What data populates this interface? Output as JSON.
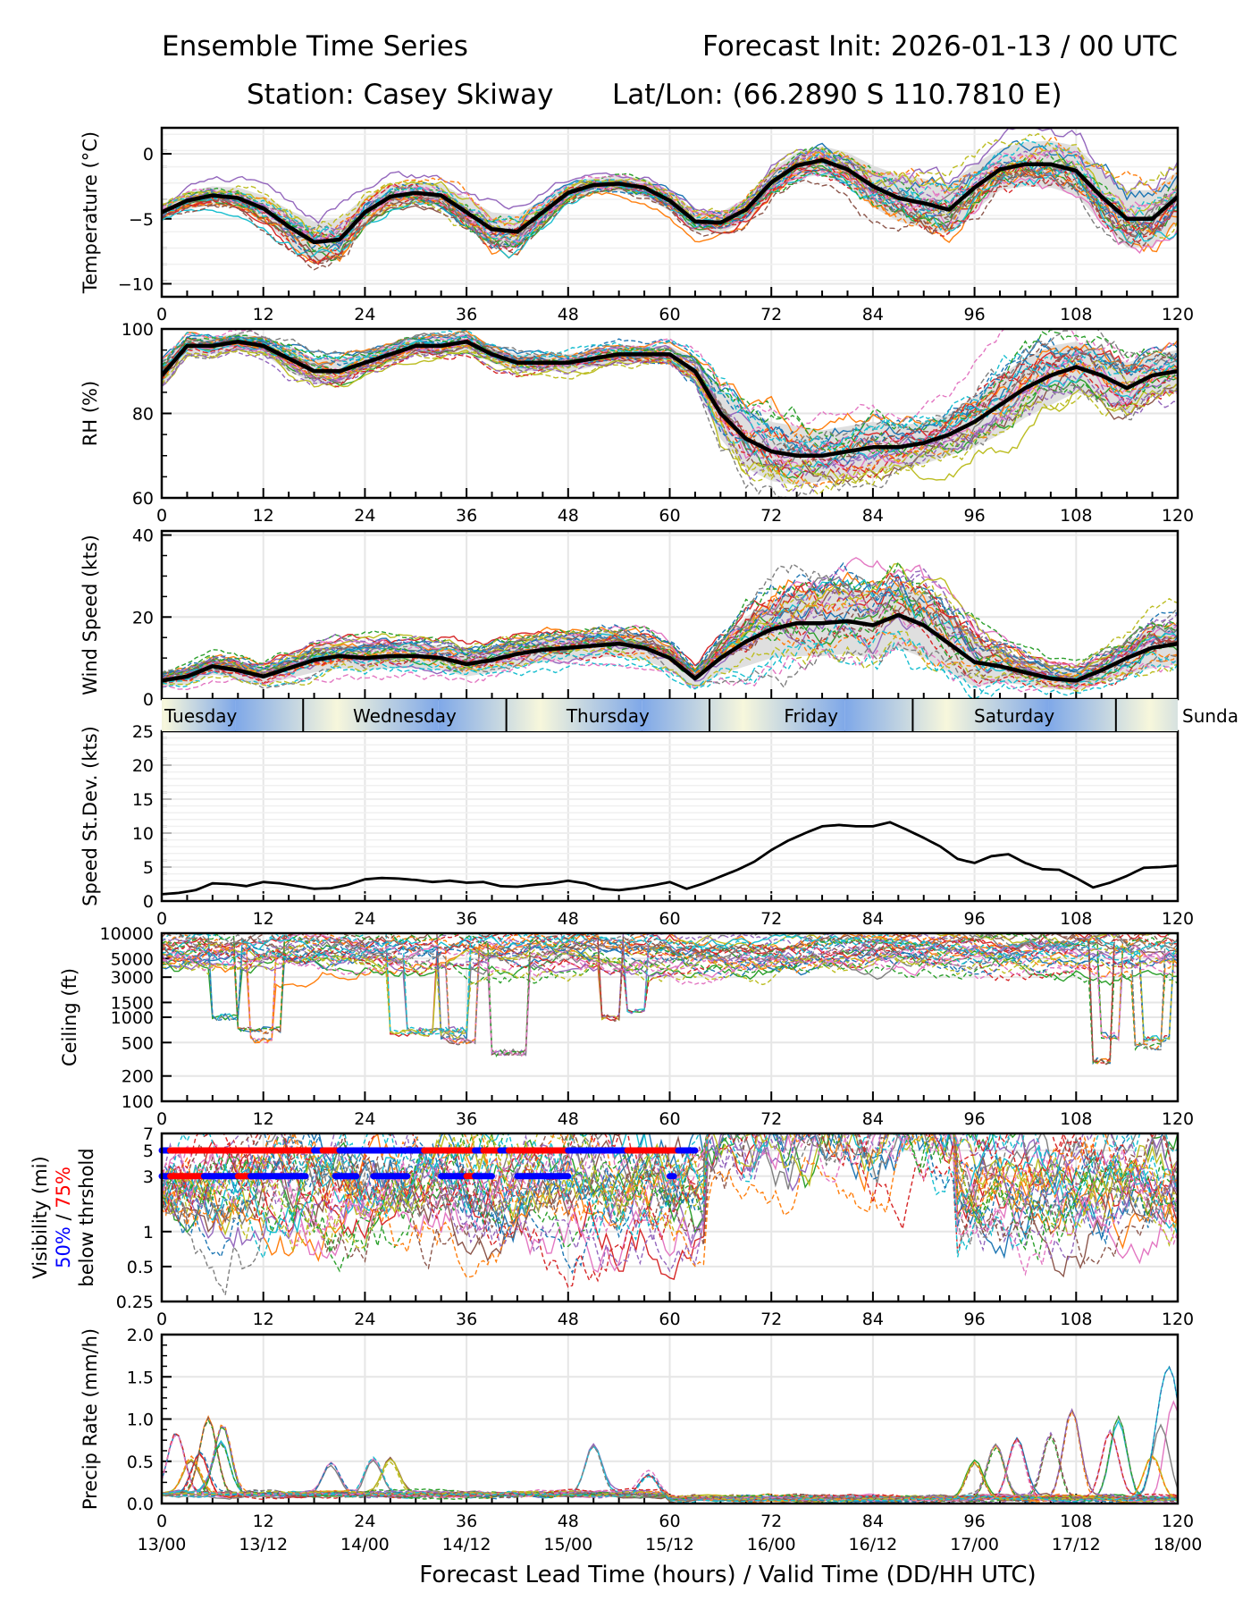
{
  "header": {
    "title": "Ensemble Time Series",
    "init": "Forecast Init: 2026-01-13 / 00 UTC",
    "station": "Station: Casey Skiway",
    "latlon": "Lat/Lon: (66.2890 S 110.7810 E)"
  },
  "xaxis": {
    "label": "Forecast Lead Time (hours) / Valid Time (DD/HH UTC)",
    "ticks": [
      0,
      12,
      24,
      36,
      48,
      60,
      72,
      84,
      96,
      108,
      120
    ],
    "valid_labels": [
      "13/00",
      "13/12",
      "14/00",
      "14/12",
      "15/00",
      "15/12",
      "16/00",
      "16/12",
      "17/00",
      "17/12",
      "18/00"
    ],
    "range": [
      0,
      120
    ]
  },
  "day_band": {
    "days": [
      {
        "label": "Tuesday",
        "start": 0,
        "end": 16.7
      },
      {
        "label": "Wednesday",
        "start": 16.7,
        "end": 40.7
      },
      {
        "label": "Thursday",
        "start": 40.7,
        "end": 64.7
      },
      {
        "label": "Friday",
        "start": 64.7,
        "end": 88.7
      },
      {
        "label": "Saturday",
        "start": 88.7,
        "end": 112.7
      },
      {
        "label": "Sunda",
        "start": 112.7,
        "end": 136.7
      }
    ],
    "colors": {
      "light": "#f7f7dc",
      "dark": "#7fa8e8"
    }
  },
  "colors": {
    "members": [
      "#1f77b4",
      "#ff7f0e",
      "#2ca02c",
      "#d62728",
      "#9467bd",
      "#8c564b",
      "#e377c2",
      "#7f7f7f",
      "#bcbd22",
      "#17becf"
    ],
    "mean": "#000000",
    "spread": "#d9d9d9",
    "grid": "#e6e6e6",
    "p50": "#0000ff",
    "p75": "#ff0000"
  },
  "chart_data": [
    {
      "id": "temperature",
      "type": "line",
      "ylabel": "Temperature (°C)",
      "ylim": [
        -11,
        2
      ],
      "yticks": [
        0,
        -5,
        -10
      ],
      "ytick_labels": [
        "0",
        "−5",
        "−10"
      ],
      "members": 30,
      "mean": {
        "x": [
          0,
          3,
          6,
          9,
          12,
          15,
          18,
          21,
          24,
          27,
          30,
          33,
          36,
          39,
          42,
          45,
          48,
          51,
          54,
          57,
          60,
          63,
          66,
          69,
          72,
          75,
          78,
          81,
          84,
          87,
          90,
          93,
          96,
          99,
          102,
          105,
          108,
          111,
          114,
          117,
          120
        ],
        "y": [
          -4.5,
          -3.6,
          -3.2,
          -3.4,
          -4.2,
          -5.6,
          -6.8,
          -6.6,
          -4.5,
          -3.3,
          -3.0,
          -3.2,
          -4.5,
          -5.8,
          -6.0,
          -4.5,
          -3.0,
          -2.4,
          -2.3,
          -2.6,
          -3.6,
          -5.2,
          -5.3,
          -4.3,
          -2.2,
          -0.9,
          -0.5,
          -1.2,
          -2.5,
          -3.4,
          -3.8,
          -4.3,
          -2.6,
          -1.2,
          -0.8,
          -0.8,
          -1.3,
          -3.3,
          -5.0,
          -5.0,
          -3.3
        ]
      },
      "spread": [
        0.6,
        0.7,
        0.7,
        0.8,
        1.0,
        1.3,
        1.6,
        1.6,
        1.2,
        0.9,
        0.8,
        0.9,
        1.1,
        1.3,
        1.3,
        1.0,
        0.7,
        0.6,
        0.6,
        0.7,
        0.8,
        0.8,
        0.8,
        0.9,
        1.0,
        1.0,
        1.1,
        1.3,
        1.6,
        1.8,
        1.9,
        1.9,
        1.8,
        1.6,
        1.7,
        1.8,
        1.9,
        2.0,
        2.2,
        2.2,
        2.0
      ]
    },
    {
      "id": "rh",
      "type": "line",
      "ylabel": "RH (%)",
      "ylim": [
        60,
        100
      ],
      "yticks": [
        100,
        80,
        60
      ],
      "ytick_labels": [
        "100",
        "80",
        "60"
      ],
      "members": 30,
      "mean": {
        "x": [
          0,
          3,
          6,
          9,
          12,
          15,
          18,
          21,
          24,
          27,
          30,
          33,
          36,
          39,
          42,
          45,
          48,
          51,
          54,
          57,
          60,
          63,
          66,
          69,
          72,
          75,
          78,
          81,
          84,
          87,
          90,
          93,
          96,
          99,
          102,
          105,
          108,
          111,
          114,
          117,
          120
        ],
        "y": [
          89,
          96,
          96,
          97,
          96,
          93,
          90,
          90,
          92,
          94,
          96,
          96,
          97,
          94,
          92,
          92,
          92,
          93,
          94,
          94,
          94,
          90,
          80,
          74,
          71,
          70,
          70,
          71,
          72,
          72,
          73,
          75,
          78,
          82,
          86,
          89,
          91,
          89,
          86,
          89,
          90
        ]
      },
      "spread": [
        3,
        2,
        2,
        2,
        2,
        3,
        3,
        3,
        2,
        2,
        2,
        2,
        2,
        2,
        2,
        2,
        2,
        2,
        2,
        2,
        2,
        3,
        6,
        7,
        7,
        7,
        6,
        6,
        6,
        5,
        5,
        5,
        6,
        7,
        7,
        7,
        6,
        6,
        6,
        5,
        5
      ]
    },
    {
      "id": "wind",
      "type": "line",
      "ylabel": "Wind Speed (kts)",
      "ylim": [
        0,
        41
      ],
      "yticks": [
        0,
        20,
        40
      ],
      "ytick_labels": [
        "0",
        "20",
        "40"
      ],
      "members": 30,
      "mean": {
        "x": [
          0,
          3,
          6,
          9,
          12,
          15,
          18,
          21,
          24,
          27,
          30,
          33,
          36,
          39,
          42,
          45,
          48,
          51,
          54,
          57,
          60,
          63,
          66,
          69,
          72,
          75,
          78,
          81,
          84,
          87,
          90,
          93,
          96,
          99,
          102,
          105,
          108,
          111,
          114,
          117,
          120
        ],
        "y": [
          4.5,
          5.5,
          8,
          7,
          5.5,
          7.5,
          9.5,
          10.5,
          10,
          10.5,
          10.5,
          10,
          8.5,
          9.5,
          11,
          12,
          12.5,
          13,
          13.5,
          12.5,
          10,
          5,
          10,
          14,
          17,
          18.5,
          18.5,
          19,
          18,
          20.5,
          18,
          13.5,
          9,
          8,
          6.5,
          5,
          4.5,
          7,
          10,
          12.5,
          13.5
        ]
      },
      "spread": [
        1.5,
        2,
        2,
        2,
        2,
        2.5,
        3,
        3,
        3,
        3,
        3,
        3,
        3,
        3,
        3,
        3,
        3,
        3,
        3,
        3,
        3,
        2,
        4,
        6,
        7,
        8,
        8,
        8,
        8,
        8,
        8,
        7,
        6,
        4,
        3,
        2.5,
        2.5,
        3,
        4,
        5,
        5
      ]
    },
    {
      "id": "speed_stdev",
      "type": "line",
      "ylabel": "Speed St.Dev. (kts)",
      "ylim": [
        0,
        25
      ],
      "yticks": [
        0,
        5,
        10,
        15,
        20,
        25
      ],
      "ytick_labels": [
        "0",
        "5",
        "10",
        "15",
        "20",
        "25"
      ],
      "members": 0,
      "mean": {
        "x": [
          0,
          2,
          4,
          6,
          8,
          10,
          12,
          14,
          16,
          18,
          20,
          22,
          24,
          26,
          28,
          30,
          32,
          34,
          36,
          38,
          40,
          42,
          44,
          46,
          48,
          50,
          52,
          54,
          56,
          58,
          60,
          62,
          64,
          66,
          68,
          70,
          72,
          74,
          76,
          78,
          80,
          82,
          84,
          86,
          88,
          90,
          92,
          94,
          96,
          98,
          100,
          102,
          104,
          106,
          108,
          110,
          112,
          114,
          116,
          118,
          120
        ],
        "y": [
          1.0,
          1.2,
          1.6,
          2.6,
          2.5,
          2.2,
          2.8,
          2.6,
          2.2,
          1.8,
          1.9,
          2.4,
          3.2,
          3.4,
          3.3,
          3.1,
          2.8,
          3.0,
          2.7,
          2.8,
          2.2,
          2.1,
          2.4,
          2.6,
          3.0,
          2.6,
          1.8,
          1.6,
          1.9,
          2.3,
          2.8,
          1.8,
          2.6,
          3.6,
          4.6,
          5.8,
          7.5,
          8.9,
          10.0,
          11.0,
          11.2,
          11.0,
          11.0,
          11.6,
          10.5,
          9.3,
          8.0,
          6.2,
          5.6,
          6.6,
          6.9,
          5.6,
          4.7,
          4.6,
          3.4,
          2.0,
          2.7,
          3.7,
          4.9,
          5.0,
          5.2
        ]
      }
    },
    {
      "id": "ceiling",
      "type": "line",
      "ylabel": "Ceiling (ft)",
      "yscale": "log",
      "ylim": [
        100,
        10000
      ],
      "yticks": [
        10000,
        5000,
        3000,
        1500,
        1000,
        500,
        200,
        100
      ],
      "ytick_labels": [
        "10000",
        "5000",
        "3000",
        "1500",
        "1000",
        "500",
        "200",
        "100"
      ],
      "members": 30,
      "dips": [
        [
          9,
          14,
          700
        ],
        [
          10.5,
          13,
          550
        ],
        [
          6,
          9,
          1000
        ],
        [
          27,
          32,
          650
        ],
        [
          29,
          36,
          700
        ],
        [
          33,
          36,
          600
        ],
        [
          34,
          37,
          520
        ],
        [
          39,
          43,
          380
        ],
        [
          52,
          54,
          1000
        ],
        [
          55,
          57,
          1150
        ],
        [
          110,
          112,
          300
        ],
        [
          111,
          113,
          600
        ],
        [
          115,
          118,
          450
        ],
        [
          116,
          119,
          550
        ],
        [
          121,
          124,
          380
        ]
      ]
    },
    {
      "id": "visibility",
      "type": "line",
      "ylabel": "Visibility (mi)",
      "ylabel2": "below thrshold",
      "ylabel_p50": "50%",
      "ylabel_sep": " / ",
      "ylabel_p75": "75%",
      "yscale": "log",
      "ylim": [
        0.25,
        7
      ],
      "yticks": [
        7,
        5,
        3,
        1,
        0.5,
        0.25
      ],
      "ytick_labels": [
        "7",
        "5",
        "3",
        "1",
        "0.5",
        "0.25"
      ],
      "members": 30,
      "thresholds": [
        {
          "level": 5,
          "segments": [
            [
              0,
              1,
              "p50"
            ],
            [
              1,
              18,
              "p75"
            ],
            [
              18,
              19,
              "p50"
            ],
            [
              19,
              21,
              "p75"
            ],
            [
              21,
              31,
              "p50"
            ],
            [
              31,
              37,
              "p75"
            ],
            [
              37,
              38,
              "p50"
            ],
            [
              38,
              40,
              "p75"
            ],
            [
              40,
              41,
              "p50"
            ],
            [
              41,
              48,
              "p75"
            ],
            [
              48,
              55,
              "p50"
            ],
            [
              55,
              61,
              "p75"
            ],
            [
              61,
              63,
              "p50"
            ]
          ]
        },
        {
          "level": 3,
          "segments": [
            [
              0,
              1,
              "p50"
            ],
            [
              1,
              5,
              "p75"
            ],
            [
              5,
              9,
              "p50"
            ],
            [
              9,
              10.5,
              "p75"
            ],
            [
              10.5,
              17,
              "p50"
            ],
            [
              20.5,
              23,
              "p50"
            ],
            [
              25,
              29,
              "p50"
            ],
            [
              33,
              36,
              "p50"
            ],
            [
              36,
              37,
              "p75"
            ],
            [
              37,
              39,
              "p50"
            ],
            [
              42,
              47,
              "p50"
            ],
            [
              47,
              48,
              "p50"
            ],
            [
              60,
              60.5,
              "p50"
            ]
          ]
        }
      ]
    },
    {
      "id": "precip",
      "type": "line",
      "ylabel": "Precip Rate (mm/h)",
      "ylim": [
        0,
        2
      ],
      "yticks": [
        0,
        0.5,
        1,
        1.5,
        2
      ],
      "ytick_labels": [
        "0.0",
        "0.5",
        "1.0",
        "1.5",
        "2.0"
      ],
      "members": 30,
      "peaks": [
        [
          1.7,
          0.72
        ],
        [
          5.5,
          0.9
        ],
        [
          7.2,
          0.8
        ],
        [
          4.5,
          0.5
        ],
        [
          7,
          0.6
        ],
        [
          3.5,
          0.42
        ],
        [
          20,
          0.38
        ],
        [
          25,
          0.42
        ],
        [
          27,
          0.4
        ],
        [
          51,
          0.58
        ],
        [
          57.5,
          0.25
        ],
        [
          96,
          0.45
        ],
        [
          98.5,
          0.62
        ],
        [
          101,
          0.7
        ],
        [
          105,
          0.75
        ],
        [
          107.5,
          1.05
        ],
        [
          112,
          0.78
        ],
        [
          113,
          0.95
        ],
        [
          117,
          0.52
        ],
        [
          118,
          0.88
        ],
        [
          119.5,
          1.15
        ]
      ]
    }
  ]
}
